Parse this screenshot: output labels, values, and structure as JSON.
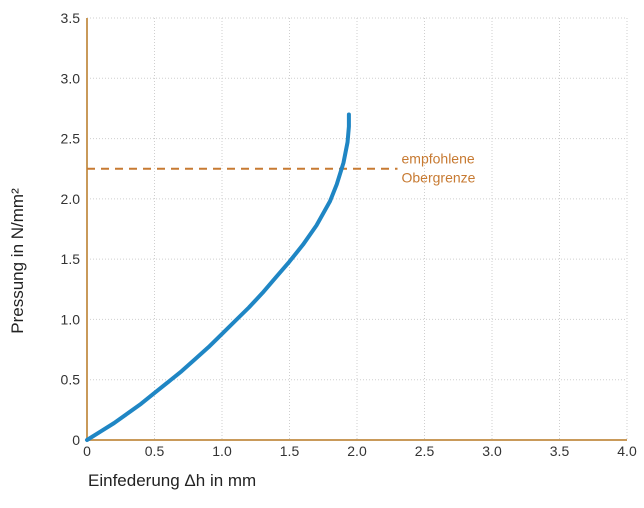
{
  "chart_data": {
    "type": "line",
    "title": "",
    "xlabel": "Einfederung Δh in mm",
    "ylabel": "Pressung in N/mm²",
    "xlim": [
      0,
      4.0
    ],
    "ylim": [
      0,
      3.5
    ],
    "xticks": [
      "0",
      "0.5",
      "1.0",
      "1.5",
      "2.0",
      "2.5",
      "3.0",
      "3.5",
      "4.0"
    ],
    "yticks": [
      "0",
      "0.5",
      "1.0",
      "1.5",
      "2.0",
      "2.5",
      "3.0",
      "3.5"
    ],
    "grid": true,
    "series": [
      {
        "color": "#1f86c4",
        "x": [
          0,
          0.1,
          0.2,
          0.3,
          0.4,
          0.5,
          0.6,
          0.7,
          0.8,
          0.9,
          1.0,
          1.1,
          1.2,
          1.3,
          1.4,
          1.5,
          1.6,
          1.7,
          1.8,
          1.85,
          1.9,
          1.93,
          1.94,
          1.94
        ],
        "y": [
          0,
          0.07,
          0.14,
          0.22,
          0.3,
          0.39,
          0.48,
          0.57,
          0.67,
          0.77,
          0.88,
          0.99,
          1.1,
          1.22,
          1.35,
          1.48,
          1.62,
          1.78,
          1.98,
          2.12,
          2.3,
          2.47,
          2.6,
          2.7
        ]
      }
    ],
    "reference_line": {
      "y": 2.25,
      "x_start": 0,
      "x_end": 2.3,
      "label_lines": [
        "empfohlene",
        "Obergrenze"
      ],
      "color": "#c77a32"
    },
    "axis_color": "#c99a5a",
    "grid_color": "#cfcfcf"
  }
}
